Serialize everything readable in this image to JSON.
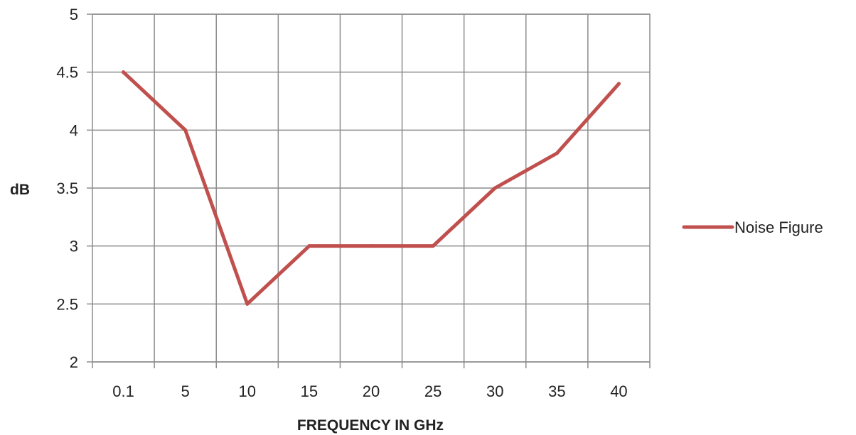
{
  "chart_data": {
    "type": "line",
    "categories": [
      "0.1",
      "5",
      "10",
      "15",
      "20",
      "25",
      "30",
      "35",
      "40"
    ],
    "series": [
      {
        "name": "Noise Figure",
        "values": [
          4.5,
          4.0,
          2.5,
          3.0,
          3.0,
          3.0,
          3.5,
          3.8,
          4.4
        ],
        "color": "#c0504d"
      }
    ],
    "xlabel": "FREQUENCY IN GHz",
    "ylabel": "dB",
    "ylim": [
      2,
      5
    ],
    "yticks": [
      "2",
      "2.5",
      "3",
      "3.5",
      "4",
      "4.5",
      "5"
    ],
    "grid": true,
    "legend_position": "right"
  }
}
